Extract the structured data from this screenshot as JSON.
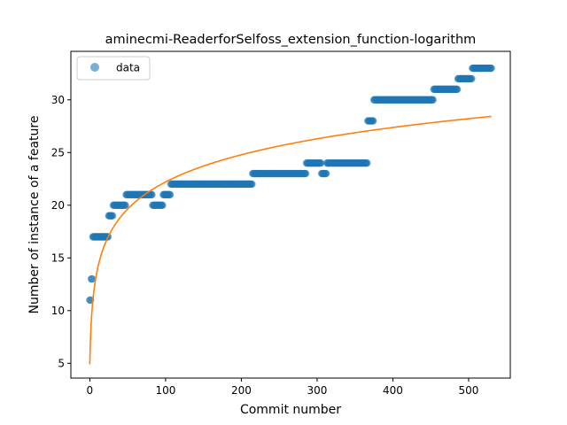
{
  "chart_data": {
    "type": "scatter",
    "title": "aminecmi-ReaderforSelfoss_extension_function-logarithm",
    "xlabel": "Commit number",
    "ylabel": "Number of instance of a feature",
    "xlim": [
      -25,
      555
    ],
    "ylim": [
      3.6,
      34.6
    ],
    "xticks": [
      0,
      100,
      200,
      300,
      400,
      500
    ],
    "yticks": [
      5,
      10,
      15,
      20,
      25,
      30
    ],
    "grid": false,
    "legend": {
      "position": "top-left",
      "entries": [
        "data"
      ]
    },
    "series": [
      {
        "name": "data",
        "kind": "scatter",
        "color": "#1f77b4",
        "steps": [
          {
            "x_start": 0,
            "x_end": 1,
            "y": 11
          },
          {
            "x_start": 2,
            "x_end": 3,
            "y": 13
          },
          {
            "x_start": 4,
            "x_end": 24,
            "y": 17
          },
          {
            "x_start": 25,
            "x_end": 30,
            "y": 19
          },
          {
            "x_start": 31,
            "x_end": 47,
            "y": 20
          },
          {
            "x_start": 48,
            "x_end": 82,
            "y": 21
          },
          {
            "x_start": 83,
            "x_end": 96,
            "y": 20
          },
          {
            "x_start": 97,
            "x_end": 106,
            "y": 21
          },
          {
            "x_start": 107,
            "x_end": 214,
            "y": 22
          },
          {
            "x_start": 215,
            "x_end": 285,
            "y": 23
          },
          {
            "x_start": 286,
            "x_end": 305,
            "y": 24
          },
          {
            "x_start": 306,
            "x_end": 312,
            "y": 23
          },
          {
            "x_start": 313,
            "x_end": 366,
            "y": 24
          },
          {
            "x_start": 367,
            "x_end": 374,
            "y": 28
          },
          {
            "x_start": 375,
            "x_end": 453,
            "y": 30
          },
          {
            "x_start": 454,
            "x_end": 485,
            "y": 31
          },
          {
            "x_start": 486,
            "x_end": 504,
            "y": 32
          },
          {
            "x_start": 505,
            "x_end": 530,
            "y": 33
          }
        ]
      },
      {
        "name": "",
        "kind": "line",
        "color": "#ff7f0e",
        "formula": "y = 4.9 + 3.75 * ln(x + 1)",
        "x": [
          0,
          1,
          2,
          3,
          5,
          8,
          12,
          18,
          25,
          35,
          50,
          70,
          100,
          130,
          170,
          220,
          280,
          350,
          420,
          480,
          530
        ],
        "y": [
          4.9,
          7.5,
          9.0,
          10.1,
          11.6,
          13.1,
          14.5,
          15.9,
          17.1,
          18.4,
          19.6,
          20.9,
          22.2,
          23.2,
          24.2,
          25.1,
          26.0,
          26.9,
          27.5,
          28.1,
          28.4
        ]
      }
    ]
  }
}
